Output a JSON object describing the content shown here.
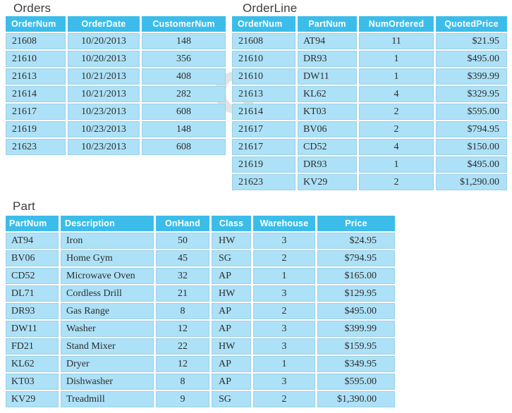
{
  "figure": {
    "watermark_letter": "G"
  },
  "colors": {
    "header_bg": "#3cbde9",
    "row_bg": "#ade1f7",
    "header_text": "#ffffff",
    "body_text": "#2d2d2d",
    "title_text": "#3c3c3c",
    "watermark": "#e3e3e3"
  },
  "tables": [
    {
      "title": "Orders",
      "columns": [
        "OrderNum",
        "OrderDate",
        "CustomerNum"
      ],
      "rows": [
        [
          "21608",
          "10/20/2013",
          "148"
        ],
        [
          "21610",
          "10/20/2013",
          "356"
        ],
        [
          "21613",
          "10/21/2013",
          "408"
        ],
        [
          "21614",
          "10/21/2013",
          "282"
        ],
        [
          "21617",
          "10/23/2013",
          "608"
        ],
        [
          "21619",
          "10/23/2013",
          "148"
        ],
        [
          "21623",
          "10/23/2013",
          "608"
        ]
      ]
    },
    {
      "title": "OrderLine",
      "columns": [
        "OrderNum",
        "PartNum",
        "NumOrdered",
        "QuotedPrice"
      ],
      "rows": [
        [
          "21608",
          "AT94",
          "11",
          "$21.95"
        ],
        [
          "21610",
          "DR93",
          "1",
          "$495.00"
        ],
        [
          "21610",
          "DW11",
          "1",
          "$399.99"
        ],
        [
          "21613",
          "KL62",
          "4",
          "$329.95"
        ],
        [
          "21614",
          "KT03",
          "2",
          "$595.00"
        ],
        [
          "21617",
          "BV06",
          "2",
          "$794.95"
        ],
        [
          "21617",
          "CD52",
          "4",
          "$150.00"
        ],
        [
          "21619",
          "DR93",
          "1",
          "$495.00"
        ],
        [
          "21623",
          "KV29",
          "2",
          "$1,290.00"
        ]
      ]
    },
    {
      "title": "Part",
      "columns": [
        "PartNum",
        "Description",
        "OnHand",
        "Class",
        "Warehouse",
        "Price"
      ],
      "rows": [
        [
          "AT94",
          "Iron",
          "50",
          "HW",
          "3",
          "$24.95"
        ],
        [
          "BV06",
          "Home Gym",
          "45",
          "SG",
          "2",
          "$794.95"
        ],
        [
          "CD52",
          "Microwave Oven",
          "32",
          "AP",
          "1",
          "$165.00"
        ],
        [
          "DL71",
          "Cordless Drill",
          "21",
          "HW",
          "3",
          "$129.95"
        ],
        [
          "DR93",
          "Gas Range",
          "8",
          "AP",
          "2",
          "$495.00"
        ],
        [
          "DW11",
          "Washer",
          "12",
          "AP",
          "3",
          "$399.99"
        ],
        [
          "FD21",
          "Stand Mixer",
          "22",
          "HW",
          "3",
          "$159.95"
        ],
        [
          "KL62",
          "Dryer",
          "12",
          "AP",
          "1",
          "$349.95"
        ],
        [
          "KT03",
          "Dishwasher",
          "8",
          "AP",
          "3",
          "$595.00"
        ],
        [
          "KV29",
          "Treadmill",
          "9",
          "SG",
          "2",
          "$1,390.00"
        ]
      ]
    }
  ]
}
